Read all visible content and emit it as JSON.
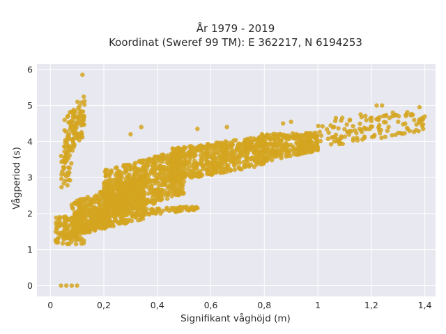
{
  "chart_data": {
    "type": "scatter",
    "title_line1": "År 1979 - 2019",
    "title_line2": "Koordinat (Sweref 99 TM): E 362217, N 6194253",
    "xlabel": "Signifikant våghöjd (m)",
    "ylabel": "Vågperiod (s)",
    "xlim": [
      -0.05,
      1.44
    ],
    "ylim": [
      -0.3,
      6.15
    ],
    "x_ticks": [
      0,
      0.2,
      0.4,
      0.6,
      0.8,
      1,
      1.2,
      1.4
    ],
    "x_tick_labels": [
      "0",
      "0,2",
      "0,4",
      "0,6",
      "0,8",
      "1",
      "1,2",
      "1,4"
    ],
    "y_ticks": [
      0,
      1,
      2,
      3,
      4,
      5,
      6
    ],
    "y_tick_labels": [
      "0",
      "1",
      "2",
      "3",
      "4",
      "5",
      "6"
    ],
    "grid": true,
    "colors": {
      "marker": "#d4a420",
      "plot_bg": "#e8e8f0",
      "grid": "#ffffff",
      "text": "#2a2a2a"
    },
    "clusters": [
      {
        "kind": "band",
        "x_min": 0.02,
        "x_max": 0.13,
        "y_lo_start": 1.2,
        "y_hi_start": 1.9,
        "y_lo_end": 1.05,
        "y_hi_end": 2.0,
        "n": 120
      },
      {
        "kind": "band",
        "x_min": 0.08,
        "x_max": 0.35,
        "y_lo_start": 1.35,
        "y_hi_start": 2.3,
        "y_lo_end": 1.85,
        "y_hi_end": 3.1,
        "n": 650
      },
      {
        "kind": "band",
        "x_min": 0.2,
        "x_max": 0.5,
        "y_lo_start": 1.8,
        "y_hi_start": 3.2,
        "y_lo_end": 2.55,
        "y_hi_end": 3.8,
        "n": 700
      },
      {
        "kind": "band",
        "x_min": 0.45,
        "x_max": 0.8,
        "y_lo_start": 2.85,
        "y_hi_start": 3.8,
        "y_lo_end": 3.35,
        "y_hi_end": 4.15,
        "n": 550
      },
      {
        "kind": "band",
        "x_min": 0.78,
        "x_max": 1.0,
        "y_lo_start": 3.4,
        "y_hi_start": 4.2,
        "y_lo_end": 3.75,
        "y_hi_end": 4.25,
        "n": 300
      },
      {
        "kind": "band",
        "x_min": 1.0,
        "x_max": 1.4,
        "y_lo_start": 3.8,
        "y_hi_start": 4.6,
        "y_lo_end": 4.3,
        "y_hi_end": 4.9,
        "n": 120
      },
      {
        "kind": "band",
        "x_min": 0.35,
        "x_max": 0.55,
        "y_lo_start": 1.95,
        "y_hi_start": 2.15,
        "y_lo_end": 2.1,
        "y_hi_end": 2.2,
        "n": 60
      },
      {
        "kind": "band",
        "x_min": 0.05,
        "x_max": 0.13,
        "y_lo_start": 3.3,
        "y_hi_start": 4.6,
        "y_lo_end": 4.2,
        "y_hi_end": 5.4,
        "n": 110
      },
      {
        "kind": "band",
        "x_min": 0.04,
        "x_max": 0.08,
        "y_lo_start": 2.6,
        "y_hi_start": 3.6,
        "y_lo_end": 2.8,
        "y_hi_end": 4.1,
        "n": 30
      }
    ],
    "points": [
      {
        "x": 0.04,
        "y": 0.0
      },
      {
        "x": 0.06,
        "y": 0.0
      },
      {
        "x": 0.08,
        "y": 0.0
      },
      {
        "x": 0.1,
        "y": 0.0
      },
      {
        "x": 0.12,
        "y": 5.85
      },
      {
        "x": 0.02,
        "y": 1.5
      },
      {
        "x": 0.02,
        "y": 1.25
      },
      {
        "x": 0.34,
        "y": 4.4
      },
      {
        "x": 0.55,
        "y": 4.35
      },
      {
        "x": 0.3,
        "y": 4.2
      },
      {
        "x": 1.22,
        "y": 5.0
      },
      {
        "x": 1.24,
        "y": 5.0
      },
      {
        "x": 1.16,
        "y": 4.75
      },
      {
        "x": 1.12,
        "y": 4.6
      },
      {
        "x": 1.28,
        "y": 4.8
      },
      {
        "x": 1.3,
        "y": 4.55
      },
      {
        "x": 1.36,
        "y": 4.6
      },
      {
        "x": 1.39,
        "y": 4.65
      },
      {
        "x": 1.38,
        "y": 4.95
      },
      {
        "x": 1.33,
        "y": 4.75
      },
      {
        "x": 1.26,
        "y": 4.3
      },
      {
        "x": 0.87,
        "y": 4.5
      },
      {
        "x": 0.9,
        "y": 4.55
      },
      {
        "x": 0.66,
        "y": 4.4
      },
      {
        "x": 0.55,
        "y": 2.15
      },
      {
        "x": 0.53,
        "y": 2.15
      }
    ]
  }
}
